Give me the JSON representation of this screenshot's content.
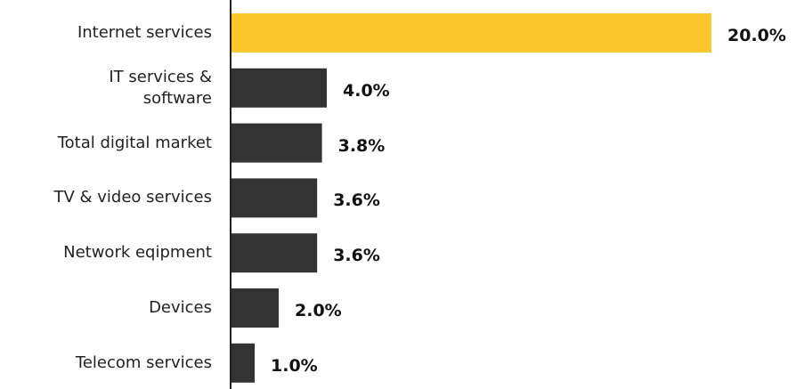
{
  "chart_data": {
    "type": "bar",
    "orientation": "horizontal",
    "categories": [
      "Internet services",
      "IT services &\nsoftware",
      "Total digital market",
      "TV & video services",
      "Network eqipment",
      "Devices",
      "Telecom services"
    ],
    "values": [
      20.0,
      4.0,
      3.8,
      3.6,
      3.6,
      2.0,
      1.0
    ],
    "value_labels": [
      "20.0%",
      "4.0%",
      "3.8%",
      "3.6%",
      "3.6%",
      "2.0%",
      "1.0%"
    ],
    "colors": [
      "#fcc72c",
      "#333333",
      "#333333",
      "#333333",
      "#333333",
      "#333333",
      "#333333"
    ]
  }
}
